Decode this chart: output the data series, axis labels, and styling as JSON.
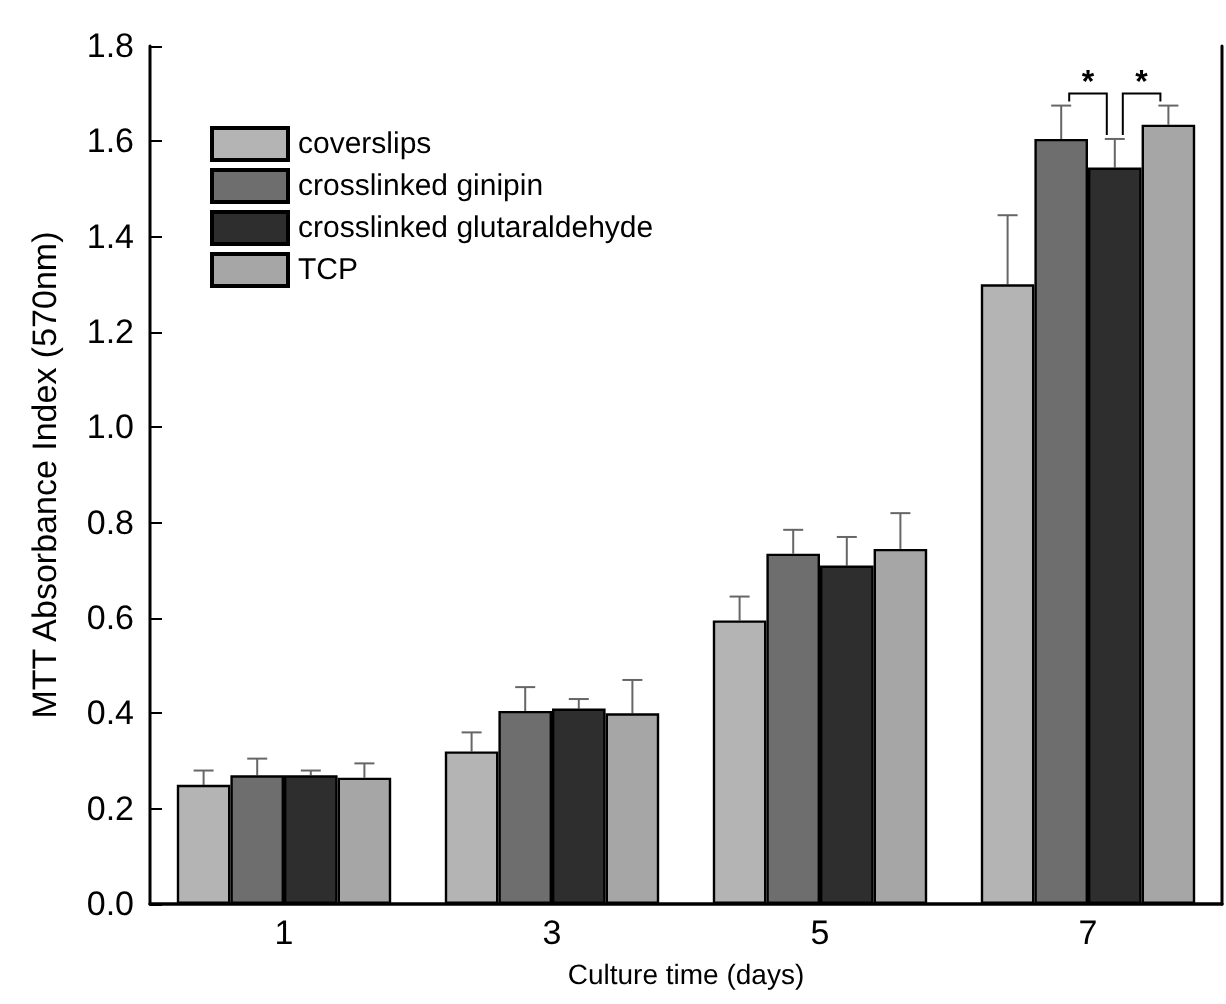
{
  "chart_data": {
    "type": "bar",
    "xlabel": "Culture time (days)",
    "ylabel": "MTT Absorbance Index (570nm)",
    "categories": [
      "1",
      "3",
      "5",
      "7"
    ],
    "series": [
      {
        "name": "coverslips",
        "color": "#b4b4b4",
        "values": [
          0.25,
          0.32,
          0.595,
          1.3
        ],
        "errors": [
          0.03,
          0.04,
          0.05,
          0.145
        ]
      },
      {
        "name": "crosslinked ginipin",
        "color": "#6e6e6e",
        "values": [
          0.27,
          0.405,
          0.735,
          1.605
        ],
        "errors": [
          0.035,
          0.05,
          0.05,
          0.07
        ]
      },
      {
        "name": "crosslinked glutaraldehyde",
        "color": "#2e2e2e",
        "values": [
          0.27,
          0.41,
          0.71,
          1.545
        ],
        "errors": [
          0.01,
          0.02,
          0.06,
          0.06
        ]
      },
      {
        "name": "TCP",
        "color": "#a6a6a6",
        "values": [
          0.265,
          0.4,
          0.745,
          1.635
        ],
        "errors": [
          0.03,
          0.07,
          0.075,
          0.04
        ]
      }
    ],
    "annotations": [
      "*",
      "*"
    ],
    "ylim": [
      0,
      1.8
    ],
    "yticks": [
      {
        "value": 0,
        "label": "0.0"
      },
      0.2,
      0.4,
      0.6,
      0.8,
      {
        "value": 1,
        "label": "1.0"
      },
      1.2,
      1.4,
      1.6,
      1.8
    ],
    "grid": false,
    "legend": "top left"
  }
}
